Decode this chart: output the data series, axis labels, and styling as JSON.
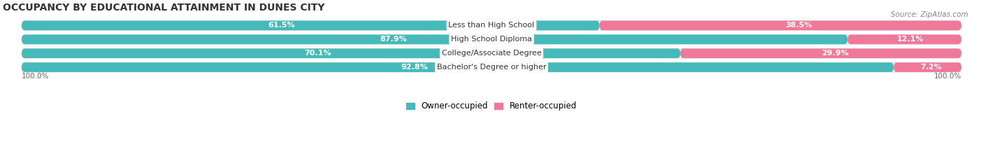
{
  "title": "OCCUPANCY BY EDUCATIONAL ATTAINMENT IN DUNES CITY",
  "source": "Source: ZipAtlas.com",
  "categories": [
    "Less than High School",
    "High School Diploma",
    "College/Associate Degree",
    "Bachelor's Degree or higher"
  ],
  "owner_values": [
    61.5,
    87.9,
    70.1,
    92.8
  ],
  "renter_values": [
    38.5,
    12.1,
    29.9,
    7.2
  ],
  "owner_color": "#45BABA",
  "renter_color": "#F07898",
  "owner_label": "Owner-occupied",
  "renter_label": "Renter-occupied",
  "bg_color": "#EFEFEF",
  "title_fontsize": 10,
  "label_fontsize": 8,
  "bar_height": 0.68,
  "figsize": [
    14.06,
    2.33
  ],
  "dpi": 100,
  "total_width": 100
}
